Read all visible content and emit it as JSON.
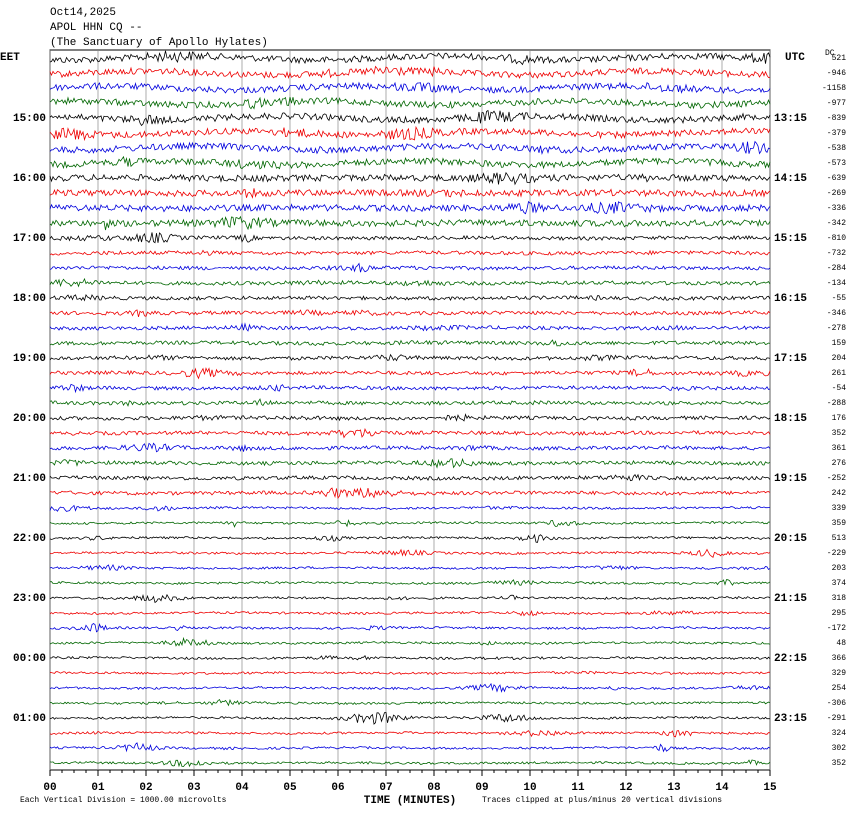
{
  "header": {
    "date": "Oct14,2025",
    "station": "APOL HHN CQ --",
    "site": "(The Sanctuary of Apollo Hylates)"
  },
  "left_zone": "EET",
  "right_zone": "UTC",
  "dc_label": "DC",
  "left_times": [
    "15:00",
    "16:00",
    "17:00",
    "18:00",
    "19:00",
    "20:00",
    "21:00",
    "22:00",
    "23:00",
    "00:00",
    "01:00"
  ],
  "right_times": [
    "13:15",
    "14:15",
    "15:15",
    "16:15",
    "17:15",
    "18:15",
    "19:15",
    "20:15",
    "21:15",
    "22:15",
    "23:15"
  ],
  "dc_offsets": [
    521,
    -946,
    -1158,
    -977,
    -839,
    -379,
    -538,
    -573,
    -639,
    -269,
    -336,
    -342,
    -810,
    -732,
    -284,
    -134,
    -55,
    -346,
    -278,
    159,
    204,
    261,
    -54,
    -288,
    176,
    352,
    361,
    276,
    -252,
    242,
    339,
    359,
    513,
    -229,
    203,
    374,
    318,
    295,
    -172,
    48,
    366,
    329,
    254,
    -306,
    -291,
    324,
    302,
    352
  ],
  "x_labels": [
    "00",
    "01",
    "02",
    "03",
    "04",
    "05",
    "06",
    "07",
    "08",
    "09",
    "10",
    "11",
    "12",
    "13",
    "14",
    "15"
  ],
  "x_title": "TIME (MINUTES)",
  "footer": {
    "scale": "Each Vertical Division = 1000.00 microvolts",
    "clip": "Traces clipped at plus/minus 20 vertical divisions"
  }
}
